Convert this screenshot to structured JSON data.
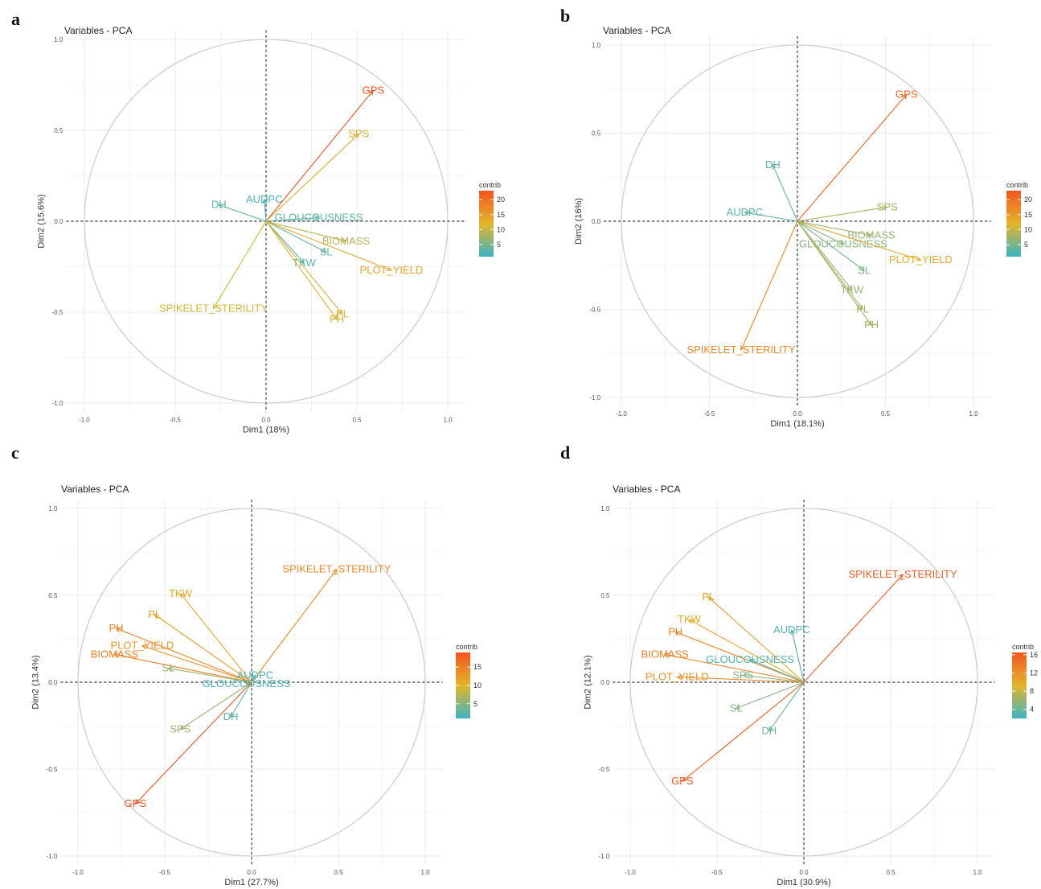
{
  "chart_data": [
    {
      "panel": "a",
      "type": "scatter",
      "title": "Variables - PCA",
      "xlabel": "Dim1 (18%)",
      "ylabel": "Dim2 (15.6%)",
      "xlim": [
        -1.0,
        1.0
      ],
      "ylim": [
        -1.0,
        1.0
      ],
      "ticks": [
        "-1.0",
        "-0.5",
        "0.0",
        "0.5",
        "1.0"
      ],
      "grid": true,
      "legend": {
        "title": "contrib",
        "ticks": [
          "5",
          "10",
          "15",
          "20"
        ],
        "tick_values": [
          5,
          10,
          15,
          20
        ],
        "min": 1,
        "max": 23,
        "placement": "right"
      },
      "variables": [
        {
          "name": "GPS",
          "x": 0.59,
          "y": 0.72,
          "contrib": 23
        },
        {
          "name": "SPS",
          "x": 0.51,
          "y": 0.48,
          "contrib": 13
        },
        {
          "name": "AUDPC",
          "x": -0.01,
          "y": 0.12,
          "contrib": 2
        },
        {
          "name": "DH",
          "x": -0.26,
          "y": 0.09,
          "contrib": 3
        },
        {
          "name": "GLOUCOUSNESS",
          "x": 0.29,
          "y": 0.02,
          "contrib": 3
        },
        {
          "name": "SL",
          "x": 0.33,
          "y": -0.17,
          "contrib": 4
        },
        {
          "name": "BIOMASS",
          "x": 0.44,
          "y": -0.11,
          "contrib": 9
        },
        {
          "name": "PLOT_YIELD",
          "x": 0.69,
          "y": -0.27,
          "contrib": 14
        },
        {
          "name": "TKW",
          "x": 0.21,
          "y": -0.23,
          "contrib": 3
        },
        {
          "name": "PL",
          "x": 0.42,
          "y": -0.51,
          "contrib": 11
        },
        {
          "name": "PH",
          "x": 0.39,
          "y": -0.54,
          "contrib": 11
        },
        {
          "name": "SPIKELET_STERILITY",
          "x": -0.29,
          "y": -0.48,
          "contrib": 11
        }
      ]
    },
    {
      "panel": "b",
      "type": "scatter",
      "title": "Variables - PCA",
      "xlabel": "Dim1 (18.1%)",
      "ylabel": "Dim2 (16%)",
      "xlim": [
        -1.0,
        1.0
      ],
      "ylim": [
        -1.0,
        1.0
      ],
      "ticks": [
        "-1.0",
        "-0.5",
        "0.0",
        "0.5",
        "1.0"
      ],
      "grid": true,
      "legend": {
        "title": "contrib",
        "ticks": [
          "5",
          "10",
          "15",
          "20"
        ],
        "tick_values": [
          5,
          10,
          15,
          20
        ],
        "min": 1,
        "max": 23,
        "placement": "right"
      },
      "variables": [
        {
          "name": "GPS",
          "x": 0.62,
          "y": 0.72,
          "contrib": 21
        },
        {
          "name": "DH",
          "x": -0.14,
          "y": 0.32,
          "contrib": 3
        },
        {
          "name": "AUDPC",
          "x": -0.3,
          "y": 0.05,
          "contrib": 3
        },
        {
          "name": "SPS",
          "x": 0.51,
          "y": 0.08,
          "contrib": 8
        },
        {
          "name": "BIOMASS",
          "x": 0.42,
          "y": -0.08,
          "contrib": 7
        },
        {
          "name": "GLOUCOUSNESS",
          "x": 0.26,
          "y": -0.13,
          "contrib": 6
        },
        {
          "name": "PLOT_YIELD",
          "x": 0.7,
          "y": -0.22,
          "contrib": 13
        },
        {
          "name": "SL",
          "x": 0.38,
          "y": -0.28,
          "contrib": 5
        },
        {
          "name": "TKW",
          "x": 0.31,
          "y": -0.39,
          "contrib": 7
        },
        {
          "name": "PL",
          "x": 0.37,
          "y": -0.5,
          "contrib": 8
        },
        {
          "name": "PH",
          "x": 0.42,
          "y": -0.59,
          "contrib": 8
        },
        {
          "name": "SPIKELET_STERILITY",
          "x": -0.32,
          "y": -0.73,
          "contrib": 17
        }
      ]
    },
    {
      "panel": "c",
      "type": "scatter",
      "title": "Variables - PCA",
      "xlabel": "Dim1 (27.7%)",
      "ylabel": "Dim2 (13.4%)",
      "xlim": [
        -1.0,
        1.0
      ],
      "ylim": [
        -1.0,
        1.0
      ],
      "ticks": [
        "-1.0",
        "-0.5",
        "0.0",
        "0.5",
        "1.0"
      ],
      "grid": true,
      "legend": {
        "title": "contrib",
        "ticks": [
          "5",
          "10",
          "15"
        ],
        "tick_values": [
          5,
          10,
          15
        ],
        "min": 1,
        "max": 19,
        "placement": "right"
      },
      "variables": [
        {
          "name": "SPIKELET_STERILITY",
          "x": 0.49,
          "y": 0.65,
          "contrib": 14
        },
        {
          "name": "TKW",
          "x": -0.41,
          "y": 0.51,
          "contrib": 11
        },
        {
          "name": "PL",
          "x": -0.56,
          "y": 0.39,
          "contrib": 12
        },
        {
          "name": "PH",
          "x": -0.78,
          "y": 0.31,
          "contrib": 15
        },
        {
          "name": "PLOT_YIELD",
          "x": -0.63,
          "y": 0.21,
          "contrib": 13
        },
        {
          "name": "BIOMASS",
          "x": -0.79,
          "y": 0.16,
          "contrib": 15
        },
        {
          "name": "SL",
          "x": -0.48,
          "y": 0.08,
          "contrib": 6
        },
        {
          "name": "AUDPC",
          "x": 0.02,
          "y": 0.04,
          "contrib": 2
        },
        {
          "name": "GLOUCOUSNESS",
          "x": -0.03,
          "y": -0.01,
          "contrib": 2
        },
        {
          "name": "SPS",
          "x": -0.41,
          "y": -0.27,
          "contrib": 6
        },
        {
          "name": "DH",
          "x": -0.12,
          "y": -0.2,
          "contrib": 3
        },
        {
          "name": "GPS",
          "x": -0.67,
          "y": -0.7,
          "contrib": 19
        }
      ]
    },
    {
      "panel": "d",
      "type": "scatter",
      "title": "Variables - PCA",
      "xlabel": "Dim1 (30.9%)",
      "ylabel": "Dim2 (12.1%)",
      "xlim": [
        -1.0,
        1.0
      ],
      "ylim": [
        -1.0,
        1.0
      ],
      "ticks": [
        "-1.0",
        "-0.5",
        "0.0",
        "0.5",
        "1.0"
      ],
      "grid": true,
      "legend": {
        "title": "contrib",
        "ticks": [
          "4",
          "8",
          "12",
          "16"
        ],
        "tick_values": [
          4,
          8,
          12,
          16
        ],
        "min": 2,
        "max": 16.5,
        "placement": "right"
      },
      "variables": [
        {
          "name": "SPIKELET_STERILITY",
          "x": 0.57,
          "y": 0.62,
          "contrib": 16
        },
        {
          "name": "PL",
          "x": -0.55,
          "y": 0.49,
          "contrib": 11
        },
        {
          "name": "TKW",
          "x": -0.66,
          "y": 0.36,
          "contrib": 10
        },
        {
          "name": "PH",
          "x": -0.74,
          "y": 0.29,
          "contrib": 13
        },
        {
          "name": "AUDPC",
          "x": -0.07,
          "y": 0.3,
          "contrib": 3
        },
        {
          "name": "GLOUCOUSNESS",
          "x": -0.31,
          "y": 0.13,
          "contrib": 3
        },
        {
          "name": "BIOMASS",
          "x": -0.8,
          "y": 0.16,
          "contrib": 13
        },
        {
          "name": "SPS",
          "x": -0.35,
          "y": 0.04,
          "contrib": 5
        },
        {
          "name": "PLOT_YIELD",
          "x": -0.73,
          "y": 0.03,
          "contrib": 12
        },
        {
          "name": "SL",
          "x": -0.39,
          "y": -0.15,
          "contrib": 5
        },
        {
          "name": "DH",
          "x": -0.2,
          "y": -0.28,
          "contrib": 4
        },
        {
          "name": "GPS",
          "x": -0.7,
          "y": -0.57,
          "contrib": 16
        }
      ]
    }
  ],
  "colors": {
    "low": "#3cb3c4",
    "mid": "#e4b52a",
    "high": "#f35520",
    "circle": "#cfcfcf",
    "grid": "#ebebeb"
  }
}
